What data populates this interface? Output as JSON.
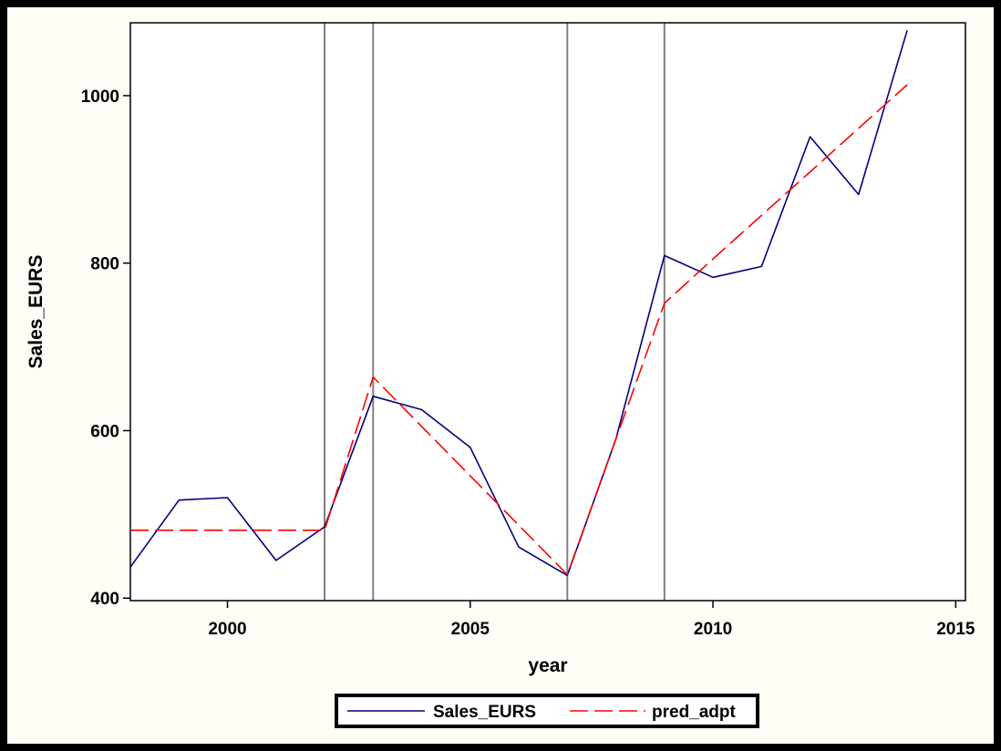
{
  "chart_data": {
    "type": "line",
    "xlabel": "year",
    "ylabel": "Sales_EURS",
    "xlim": [
      1998,
      2015.2
    ],
    "ylim": [
      397,
      1087
    ],
    "xticks": [
      2000,
      2005,
      2010,
      2015
    ],
    "yticks": [
      400,
      600,
      800,
      1000
    ],
    "grid": false,
    "legend_position": "bottom-center",
    "reference_lines_x": [
      2002,
      2003,
      2007,
      2009
    ],
    "x": [
      1998,
      1999,
      2000,
      2001,
      2002,
      2003,
      2004,
      2005,
      2006,
      2007,
      2008,
      2009,
      2010,
      2011,
      2012,
      2013,
      2014
    ],
    "series": [
      {
        "name": "Sales_EURS",
        "color": "#000080",
        "style": "solid",
        "values": [
          437,
          517,
          520,
          445,
          485,
          641,
          625,
          580,
          461,
          427,
          590,
          809,
          783,
          796,
          951,
          882,
          1078
        ]
      },
      {
        "name": "pred_adpt",
        "color": "#ff0000",
        "style": "dashed",
        "values": [
          481,
          481,
          481,
          481,
          481,
          664,
          605,
          546,
          487,
          428,
          590,
          752,
          805,
          857,
          909,
          961,
          1013
        ]
      }
    ]
  }
}
